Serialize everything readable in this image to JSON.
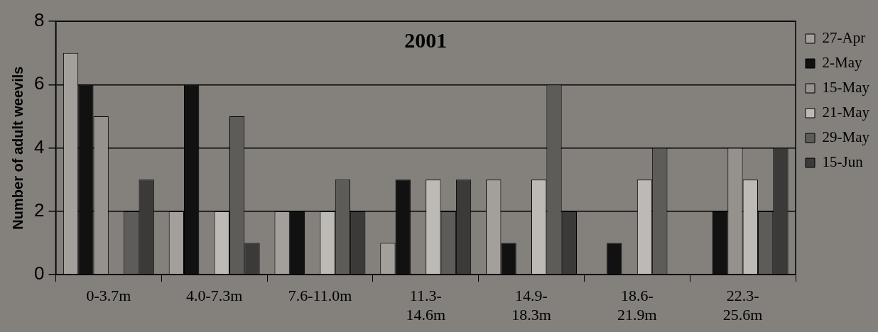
{
  "chart_data": {
    "type": "bar",
    "title": "2001",
    "ylabel": "Number of adult weevils",
    "categories": [
      "0-3.7m",
      "4.0-7.3m",
      "7.6-11.0m",
      "11.3-14.6m",
      "14.9-18.3m",
      "18.6-21.9m",
      "22.3-25.6m"
    ],
    "series": [
      {
        "name": "27-Apr",
        "color": "#a3a09b",
        "values": [
          7,
          2,
          2,
          1,
          3,
          0,
          0
        ]
      },
      {
        "name": "2-May",
        "color": "#111111",
        "values": [
          6,
          6,
          2,
          3,
          1,
          1,
          2
        ]
      },
      {
        "name": "15-May",
        "color": "#95928d",
        "values": [
          5,
          0,
          0,
          0,
          0,
          0,
          4
        ]
      },
      {
        "name": "21-May",
        "color": "#bdbab5",
        "values": [
          0,
          2,
          2,
          3,
          3,
          3,
          3
        ]
      },
      {
        "name": "29-May",
        "color": "#5e5c59",
        "values": [
          2,
          5,
          3,
          2,
          6,
          4,
          2
        ]
      },
      {
        "name": "15-Jun",
        "color": "#3c3a38",
        "values": [
          3,
          1,
          2,
          3,
          2,
          0,
          4
        ]
      }
    ],
    "ylim": [
      0,
      8
    ],
    "yticks": [
      0,
      2,
      4,
      6,
      8
    ],
    "grid": "y",
    "legend": "right"
  }
}
